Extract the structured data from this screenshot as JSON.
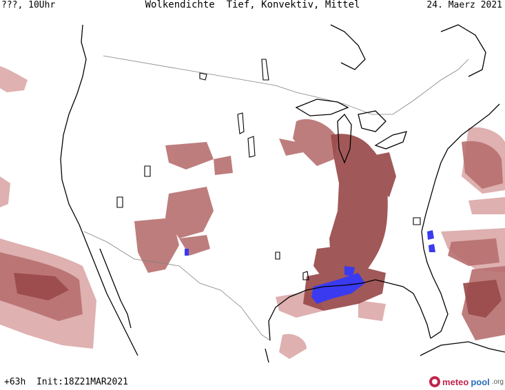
{
  "header": {
    "top_left": "???, 10Uhr",
    "title": "Wolkendichte  Tief, Konvektiv, Mittel",
    "date": "24. Maerz 2021"
  },
  "footer": {
    "run_info": "+63h  Init:18Z21MAR2021",
    "logo_meteo": "meteo",
    "logo_pool": "pool",
    "logo_org": ".org"
  },
  "colors": {
    "cloud_light": "#d9a3a3",
    "cloud_medium": "#b86f6f",
    "cloud_dense": "#9a4a4a",
    "convective": "#3a3af0",
    "coastline": "#000000",
    "borders": "#808080"
  }
}
